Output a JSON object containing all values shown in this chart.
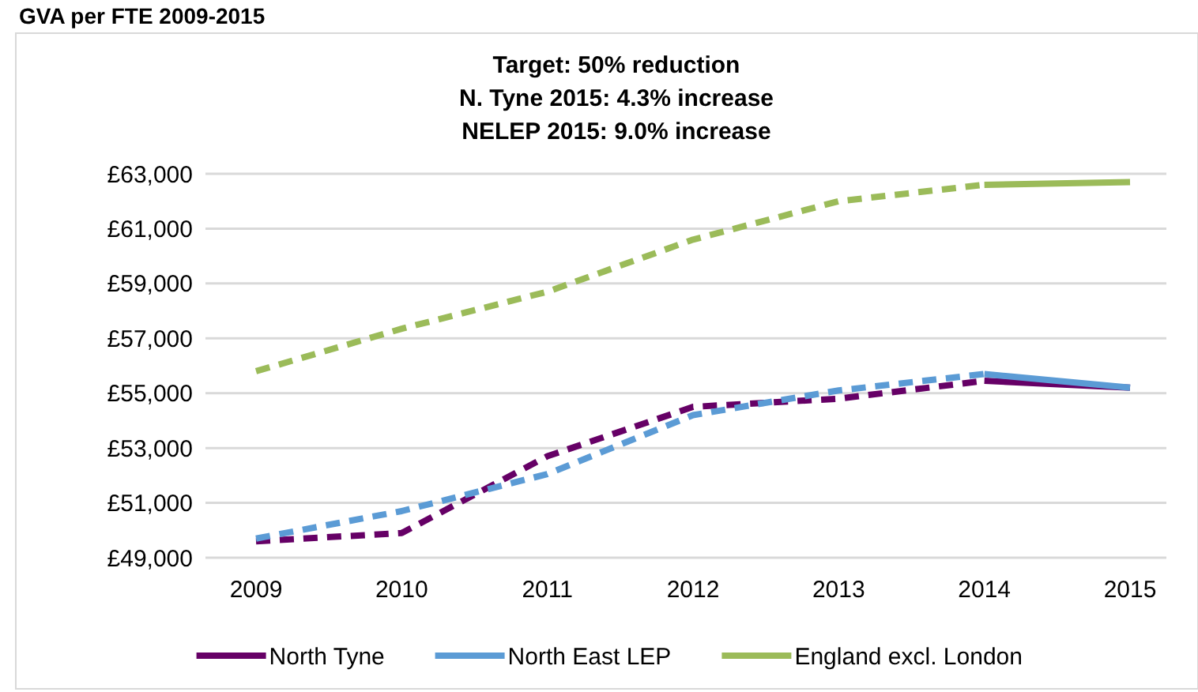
{
  "chart_data": {
    "type": "line",
    "title": "GVA per FTE 2009-2015",
    "subtitle": "Target: 50% reduction\nN. Tyne 2015: 4.3% increase\nNELEP 2015: 9.0% increase",
    "categories": [
      "2009",
      "2010",
      "2011",
      "2012",
      "2013",
      "2014",
      "2015"
    ],
    "series": [
      {
        "color": "#660066",
        "line_style": "dashed",
        "values": [
          49600,
          49900,
          52700,
          54500,
          54800,
          55450,
          null
        ]
      },
      {
        "color": "#5b9bd5",
        "line_style": "dashed",
        "values": [
          49700,
          50700,
          52050,
          54200,
          55100,
          55700,
          null
        ]
      },
      {
        "color": "#9bbb59",
        "line_style": "dashed",
        "values": [
          55800,
          57350,
          58700,
          60600,
          62000,
          62600,
          null
        ]
      },
      {
        "name": "North Tyne",
        "color": "#660066",
        "line_style": "solid",
        "values": [
          null,
          null,
          null,
          null,
          null,
          55450,
          55200
        ]
      },
      {
        "name": "North East LEP",
        "color": "#5b9bd5",
        "line_style": "solid",
        "values": [
          null,
          null,
          null,
          null,
          null,
          55700,
          55200
        ]
      },
      {
        "name": "England excl. London",
        "color": "#9bbb59",
        "line_style": "solid",
        "values": [
          null,
          null,
          null,
          null,
          null,
          62600,
          62700
        ]
      }
    ],
    "ylim": [
      49000,
      63000
    ],
    "yticks": [
      {
        "value": 49000,
        "label": "£49,000"
      },
      {
        "value": 51000,
        "label": "£51,000"
      },
      {
        "value": 53000,
        "label": "£53,000"
      },
      {
        "value": 55000,
        "label": "£55,000"
      },
      {
        "value": 57000,
        "label": "£57,000"
      },
      {
        "value": 59000,
        "label": "£59,000"
      },
      {
        "value": 61000,
        "label": "£61,000"
      },
      {
        "value": 63000,
        "label": "£63,000"
      }
    ],
    "grid": "y",
    "legend": "bottom",
    "marker": "none"
  }
}
